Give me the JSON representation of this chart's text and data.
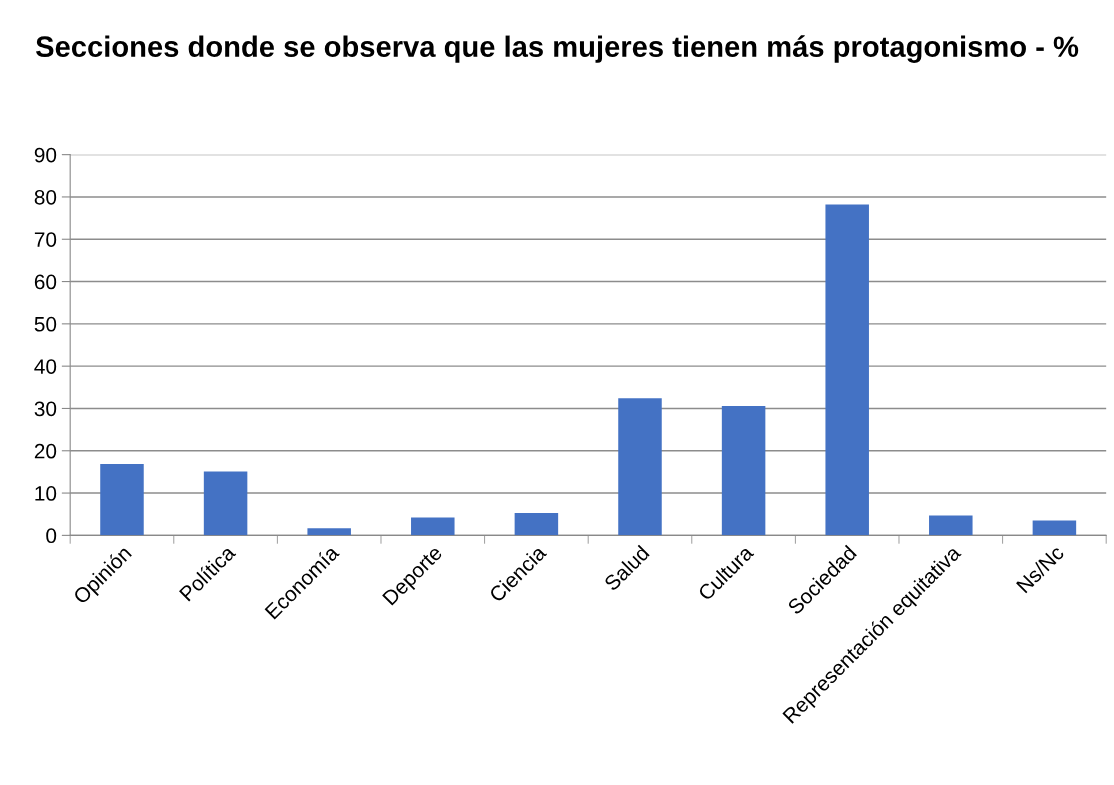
{
  "chart_data": {
    "type": "bar",
    "title": "Secciones donde se observa que las mujeres tienen más protagonismo - %",
    "categories": [
      "Opinión",
      "Política",
      "Economía",
      "Deporte",
      "Ciencia",
      "Salud",
      "Cultura",
      "Sociedad",
      "Representación equitativa",
      "Ns/Nc"
    ],
    "values": [
      16.9,
      15.1,
      1.7,
      4.2,
      5.3,
      32.4,
      30.6,
      78.2,
      4.7,
      3.5
    ],
    "color": "#4472c4",
    "ylim": [
      0,
      90
    ],
    "yticks": [
      0,
      10,
      20,
      30,
      40,
      50,
      60,
      70,
      80,
      90
    ],
    "grid": "y"
  }
}
